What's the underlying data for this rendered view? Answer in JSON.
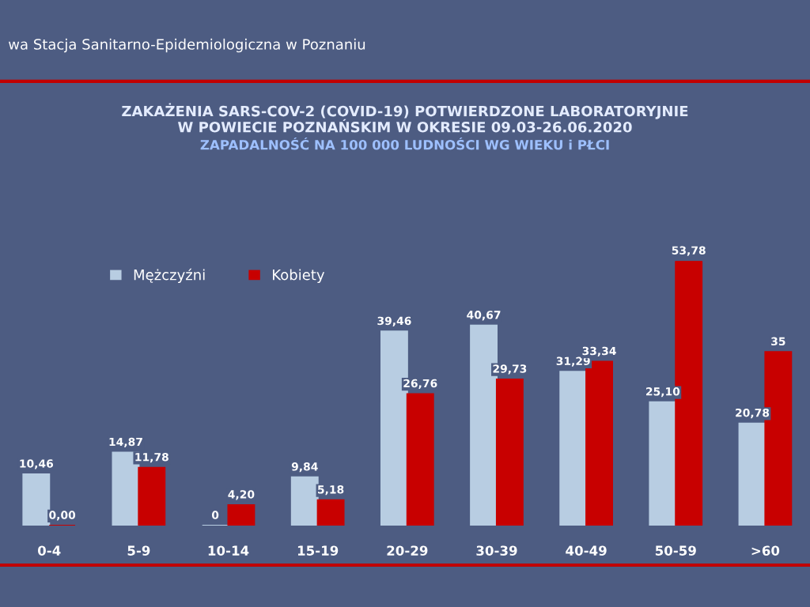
{
  "chart_data": {
    "type": "bar",
    "title": "ZAKAŻENIA SARS-COV-2 (COVID-19) POTWIERDZONE LABORATORYJNIE\nW POWIECIE POZNAŃSKIM W OKRESIE 09.03-26.06.2020",
    "subtitle": "ZAPADALNOŚĆ NA 100 000 LUDNOŚCI WG WIEKU i PŁCI",
    "annotations": [
      "wa Stacja Sanitarno-Epidemiologiczna w Poznaniu"
    ],
    "categories": [
      "0-4",
      "5-9",
      "10-14",
      "15-19",
      "20-29",
      "30-39",
      "40-49",
      "50-59",
      ">60"
    ],
    "series": [
      {
        "name": "Mężczyźni",
        "color": "#b8cde2",
        "values": [
          10.46,
          14.87,
          0,
          9.84,
          39.46,
          40.67,
          31.29,
          25.1,
          20.78
        ],
        "value_labels": [
          "10,46",
          "14,87",
          "0",
          "9,84",
          "39,46",
          "40,67",
          "31,29",
          "25,10",
          "20,78"
        ]
      },
      {
        "name": "Kobiety",
        "color": "#c80000",
        "values": [
          0,
          11.78,
          4.2,
          5.18,
          26.76,
          29.73,
          33.34,
          53.78,
          35.3
        ],
        "value_labels": [
          "0,00",
          "11,78",
          "4,20",
          "5,18",
          "26,76",
          "29,73",
          "33,34",
          "53,78",
          "35"
        ]
      }
    ],
    "legend": "top left"
  }
}
